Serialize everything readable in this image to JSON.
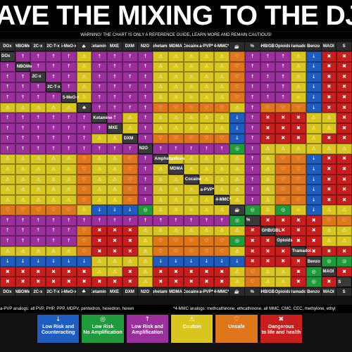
{
  "title": "AVE THE MIXING TO THE DJ!",
  "warning": "WARNING! THE CHART IS ONLY A REFERENCE GUIDE, LEARN MORE AND REMAIN CAUTIOUS!",
  "drugs": [
    "DOx",
    "NBOMe",
    "2C-x",
    "2C-T-x",
    "5-MeO-x",
    "Cannabis",
    "Ketamine",
    "MXE",
    "DXM",
    "N2O",
    "Amphetamines",
    "MDMA",
    "Cocaine",
    "a-PVP*",
    "4-MMC*",
    "Caffeine",
    "%",
    "GHB/GBL",
    "Opioids",
    "Tramadol",
    "Benzo",
    "MAOI",
    "S"
  ],
  "header_labels": [
    "DOx",
    "NBOMe",
    "2C-x",
    "2C-T-x",
    "5-MeO-x",
    "",
    "Ketamine",
    "MXE",
    "DXM",
    "N2O",
    "Amphetamines",
    "MDMA",
    "Cocaine",
    "a-PVP*",
    "4-MMC*",
    "",
    "%",
    "GHB/GBL",
    "Opioids",
    "Tramadol",
    "Benzo",
    "MAOI",
    "S"
  ],
  "categories": {
    "LRC": {
      "label": "Low Risk and\nCounteracting",
      "color": "#1e5cbf",
      "icon": "down-arrow-icon",
      "glyph": "↓"
    },
    "LRN": {
      "label": "Low Risk\nNo Amplification",
      "color": "#1f9a3c",
      "icon": "circle-icon",
      "glyph": "◎"
    },
    "LRA": {
      "label": "Low Risk and\nAmplification",
      "color": "#9b2f9b",
      "icon": "up-arrow-icon",
      "glyph": "↑"
    },
    "CAU": {
      "label": "Caution",
      "color": "#d8c51e",
      "icon": "warning-icon",
      "glyph": "⚠"
    },
    "UNS": {
      "label": "Unsafe",
      "color": "#e0761b",
      "icon": "heart-icon",
      "glyph": "♡"
    },
    "DAN": {
      "label": "Dangerous\nto life and health",
      "color": "#c81e1e",
      "icon": "cross-icon",
      "glyph": "✖"
    }
  },
  "legend_order": [
    "LRC",
    "LRN",
    "LRA",
    "CAU",
    "UNS",
    "DAN"
  ],
  "matrix": [
    [
      "",
      "LRA",
      "LRA",
      "LRA",
      "LRA",
      "CAU",
      "LRA",
      "LRA",
      "LRA",
      "LRA",
      "CAU",
      "CAU",
      "CAU",
      "CAU",
      "CAU",
      "UNS",
      "LRA",
      "LRA",
      "LRA",
      "CAU",
      "LRC",
      "DAN",
      "DAN"
    ],
    [
      "LRA",
      "",
      "LRA",
      "LRA",
      "LRA",
      "CAU",
      "LRA",
      "LRA",
      "LRA",
      "LRA",
      "CAU",
      "CAU",
      "CAU",
      "CAU",
      "CAU",
      "UNS",
      "LRA",
      "LRA",
      "LRA",
      "CAU",
      "LRC",
      "DAN",
      "DAN"
    ],
    [
      "LRA",
      "LRA",
      "",
      "LRA",
      "LRA",
      "CAU",
      "LRA",
      "LRA",
      "LRA",
      "LRA",
      "CAU",
      "CAU",
      "CAU",
      "CAU",
      "CAU",
      "UNS",
      "LRA",
      "LRA",
      "LRA",
      "CAU",
      "LRC",
      "DAN",
      "DAN"
    ],
    [
      "LRA",
      "LRA",
      "LRA",
      "",
      "LRA",
      "CAU",
      "LRA",
      "LRA",
      "LRA",
      "LRA",
      "CAU",
      "CAU",
      "CAU",
      "CAU",
      "CAU",
      "UNS",
      "LRA",
      "LRA",
      "LRA",
      "CAU",
      "LRC",
      "DAN",
      "DAN"
    ],
    [
      "LRA",
      "LRA",
      "LRA",
      "LRA",
      "",
      "CAU",
      "LRA",
      "LRA",
      "LRA",
      "LRA",
      "CAU",
      "CAU",
      "CAU",
      "CAU",
      "CAU",
      "UNS",
      "LRA",
      "LRA",
      "LRA",
      "CAU",
      "LRC",
      "DAN",
      "DAN"
    ],
    [
      "CAU",
      "CAU",
      "CAU",
      "CAU",
      "CAU",
      "",
      "LRA",
      "LRA",
      "LRA",
      "LRA",
      "UNS",
      "UNS",
      "UNS",
      "UNS",
      "UNS",
      "CAU",
      "LRA",
      "UNS",
      "UNS",
      "UNS",
      "LRC",
      "DAN",
      "DAN"
    ],
    [
      "LRA",
      "LRA",
      "LRA",
      "LRA",
      "LRA",
      "LRA",
      "",
      "LRA",
      "CAU",
      "LRA",
      "CAU",
      "CAU",
      "CAU",
      "CAU",
      "CAU",
      "LRC",
      "LRA",
      "DAN",
      "DAN",
      "DAN",
      "CAU",
      "CAU",
      "DAN"
    ],
    [
      "LRA",
      "LRA",
      "LRA",
      "LRA",
      "LRA",
      "LRA",
      "LRA",
      "",
      "CAU",
      "LRA",
      "CAU",
      "CAU",
      "CAU",
      "CAU",
      "CAU",
      "LRC",
      "LRA",
      "DAN",
      "DAN",
      "DAN",
      "CAU",
      "CAU",
      "DAN"
    ],
    [
      "LRA",
      "LRA",
      "LRA",
      "LRA",
      "LRA",
      "LRA",
      "CAU",
      "CAU",
      "",
      "LRA",
      "UNS",
      "UNS",
      "UNS",
      "UNS",
      "UNS",
      "LRC",
      "LRA",
      "DAN",
      "DAN",
      "DAN",
      "CAU",
      "DAN",
      "DAN"
    ],
    [
      "LRA",
      "LRA",
      "LRA",
      "LRA",
      "LRA",
      "LRA",
      "LRA",
      "LRA",
      "LRA",
      "",
      "LRA",
      "LRA",
      "LRA",
      "LRA",
      "LRA",
      "LRN",
      "LRA",
      "CAU",
      "CAU",
      "CAU",
      "CAU",
      "CAU",
      "CAU"
    ],
    [
      "CAU",
      "CAU",
      "CAU",
      "CAU",
      "CAU",
      "UNS",
      "CAU",
      "CAU",
      "UNS",
      "LRA",
      "",
      "CAU",
      "CAU",
      "CAU",
      "CAU",
      "CAU",
      "LRA",
      "CAU",
      "UNS",
      "UNS",
      "LRC",
      "DAN",
      "DAN"
    ],
    [
      "CAU",
      "CAU",
      "CAU",
      "CAU",
      "CAU",
      "UNS",
      "CAU",
      "CAU",
      "UNS",
      "LRA",
      "CAU",
      "",
      "CAU",
      "CAU",
      "CAU",
      "CAU",
      "LRA",
      "CAU",
      "UNS",
      "UNS",
      "LRC",
      "DAN",
      "DAN"
    ],
    [
      "CAU",
      "CAU",
      "CAU",
      "CAU",
      "CAU",
      "UNS",
      "CAU",
      "CAU",
      "UNS",
      "LRA",
      "CAU",
      "CAU",
      "",
      "CAU",
      "CAU",
      "CAU",
      "LRA",
      "CAU",
      "UNS",
      "UNS",
      "LRC",
      "DAN",
      "DAN"
    ],
    [
      "CAU",
      "CAU",
      "CAU",
      "CAU",
      "CAU",
      "UNS",
      "CAU",
      "CAU",
      "UNS",
      "LRA",
      "CAU",
      "CAU",
      "CAU",
      "",
      "CAU",
      "CAU",
      "LRA",
      "CAU",
      "UNS",
      "UNS",
      "LRC",
      "DAN",
      "DAN"
    ],
    [
      "CAU",
      "CAU",
      "CAU",
      "CAU",
      "CAU",
      "UNS",
      "CAU",
      "CAU",
      "UNS",
      "LRA",
      "CAU",
      "CAU",
      "CAU",
      "CAU",
      "",
      "CAU",
      "LRA",
      "CAU",
      "UNS",
      "UNS",
      "LRC",
      "DAN",
      "DAN"
    ],
    [
      "UNS",
      "UNS",
      "UNS",
      "UNS",
      "UNS",
      "CAU",
      "LRC",
      "LRC",
      "LRC",
      "LRN",
      "CAU",
      "CAU",
      "CAU",
      "CAU",
      "CAU",
      "",
      "LRN",
      "CAU",
      "LRN",
      "CAU",
      "LRC",
      "CAU",
      "CAU"
    ],
    [
      "LRA",
      "LRA",
      "LRA",
      "LRA",
      "LRA",
      "LRA",
      "LRA",
      "LRA",
      "LRA",
      "LRA",
      "LRA",
      "LRA",
      "LRA",
      "LRA",
      "LRA",
      "LRN",
      "",
      "DAN",
      "DAN",
      "DAN",
      "DAN",
      "UNS",
      "UNS"
    ],
    [
      "LRA",
      "LRA",
      "LRA",
      "LRA",
      "LRA",
      "UNS",
      "DAN",
      "DAN",
      "DAN",
      "CAU",
      "CAU",
      "CAU",
      "CAU",
      "CAU",
      "CAU",
      "CAU",
      "DAN",
      "",
      "DAN",
      "DAN",
      "DAN",
      "CAU",
      "CAU"
    ],
    [
      "LRA",
      "LRA",
      "LRA",
      "LRA",
      "LRA",
      "UNS",
      "DAN",
      "DAN",
      "DAN",
      "CAU",
      "UNS",
      "UNS",
      "UNS",
      "UNS",
      "UNS",
      "LRN",
      "DAN",
      "DAN",
      "",
      "DAN",
      "DAN",
      "CAU",
      "CAU"
    ],
    [
      "CAU",
      "CAU",
      "CAU",
      "CAU",
      "CAU",
      "UNS",
      "DAN",
      "DAN",
      "DAN",
      "CAU",
      "UNS",
      "UNS",
      "UNS",
      "UNS",
      "UNS",
      "CAU",
      "DAN",
      "DAN",
      "DAN",
      "",
      "DAN",
      "DAN",
      "DAN"
    ],
    [
      "LRC",
      "LRC",
      "LRC",
      "LRC",
      "LRC",
      "LRC",
      "CAU",
      "CAU",
      "CAU",
      "CAU",
      "LRC",
      "LRC",
      "LRC",
      "LRC",
      "LRC",
      "LRC",
      "DAN",
      "DAN",
      "DAN",
      "DAN",
      "",
      "LRN",
      "LRN"
    ],
    [
      "DAN",
      "DAN",
      "DAN",
      "DAN",
      "DAN",
      "DAN",
      "CAU",
      "CAU",
      "DAN",
      "CAU",
      "DAN",
      "DAN",
      "DAN",
      "DAN",
      "DAN",
      "CAU",
      "UNS",
      "CAU",
      "CAU",
      "DAN",
      "LRN",
      "",
      "DAN"
    ],
    [
      "DAN",
      "DAN",
      "DAN",
      "DAN",
      "DAN",
      "DAN",
      "DAN",
      "DAN",
      "DAN",
      "CAU",
      "DAN",
      "DAN",
      "DAN",
      "DAN",
      "DAN",
      "CAU",
      "UNS",
      "CAU",
      "CAU",
      "DAN",
      "LRN",
      "DAN",
      ""
    ]
  ],
  "footer_labels": [
    "DOx",
    "NBOMe",
    "2C-x",
    "2C-T-x",
    "5-MeO-x",
    "",
    "Ketamine",
    "MXE",
    "DXM",
    "N2O",
    "Amphetamines",
    "MDMA",
    "Cocaine",
    "a-PVP*",
    "4-MMC*",
    "",
    "%",
    "GHB/GBL",
    "Opioids",
    "Tramadol",
    "Benzo",
    "MAOI",
    "S"
  ],
  "notes": {
    "left": "a-PVP analogs: all PVP, PHP, PPP, MDPV, pentedron, hexedron, hexen",
    "right": "*4-MMC analogs: methcathinone, ethcathinone, all MMC, CMC, CEC, methylone, ethyl"
  }
}
